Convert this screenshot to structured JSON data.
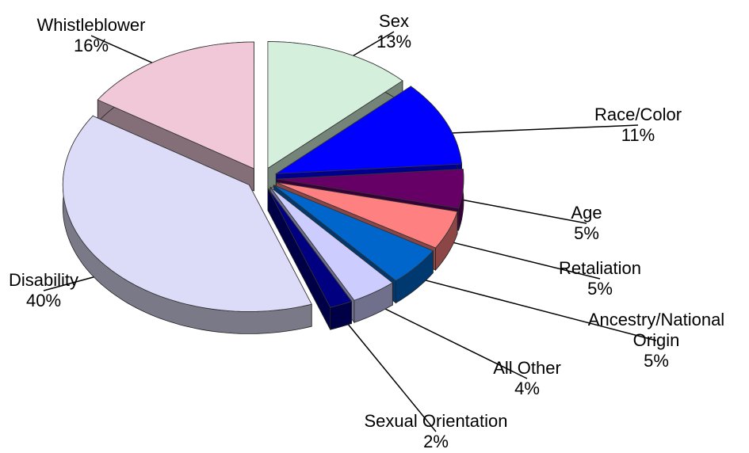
{
  "chart_data": {
    "type": "pie",
    "categories": [
      "Sex",
      "Race/Color",
      "Age",
      "Retaliation",
      "Ancestry/National Origin",
      "All Other",
      "Sexual Orientation",
      "Disability",
      "Whistleblower"
    ],
    "values": [
      13,
      11,
      5,
      5,
      5,
      4,
      2,
      40,
      16
    ],
    "value_labels": [
      "13%",
      "11%",
      "5%",
      "5%",
      "5%",
      "4%",
      "2%",
      "40%",
      "16%"
    ],
    "colors": [
      "#d4f0dc",
      "#0000ff",
      "#660066",
      "#ff8080",
      "#0066cc",
      "#ccccff",
      "#000080",
      "#dcdcf8",
      "#f0c8d8"
    ],
    "exploded": true
  }
}
